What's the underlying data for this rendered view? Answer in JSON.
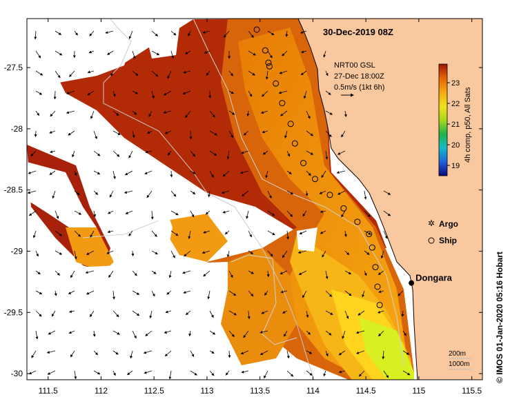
{
  "title": "30-Dec-2019 08Z",
  "current_legend": {
    "line1": "NRT00 GSL",
    "line2": "27-Dec 18:00Z",
    "line3": "0.5m/s (1kt 6h)"
  },
  "colorbar": {
    "label": "4h comp, p50, All Sats",
    "ticks": [
      "19",
      "20",
      "21",
      "22",
      "23"
    ],
    "min": 18.5,
    "max": 23.9
  },
  "x_axis": {
    "ticks": [
      "111.5",
      "112",
      "112.5",
      "113",
      "113.5",
      "114",
      "114.5",
      "115",
      "115.5"
    ],
    "range": [
      111.3,
      115.6
    ]
  },
  "y_axis": {
    "ticks": [
      "-27.5",
      "-28",
      "-28.5",
      "-29",
      "-29.5",
      "-30"
    ],
    "range": [
      -30.05,
      -27.1
    ]
  },
  "legend": {
    "argo_label": "Argo",
    "ship_label": "Ship",
    "argo_color": "#e040e0"
  },
  "place": {
    "name": "Dongara",
    "lon": 114.93,
    "lat": -29.26
  },
  "isobaths": {
    "label_200": "200m",
    "label_1000": "1000m"
  },
  "credit": "© IMOS 01-Jan-2020 05:16 Hobart",
  "colors": {
    "land": "#f9c89f",
    "sst_dark": "#a61d00",
    "sst_mid": "#dc5a00",
    "sst_warm": "#f39a0b",
    "sst_hot": "#ffd21a",
    "sst_green": "#c9f51c"
  },
  "ship_track": [
    [
      113.47,
      -27.19
    ],
    [
      113.55,
      -27.36
    ],
    [
      113.58,
      -27.46
    ],
    [
      113.59,
      -27.49
    ],
    [
      113.65,
      -27.63
    ],
    [
      113.71,
      -27.79
    ],
    [
      113.79,
      -27.96
    ],
    [
      113.83,
      -28.12
    ],
    [
      113.91,
      -28.28
    ],
    [
      114.02,
      -28.41
    ],
    [
      114.16,
      -28.54
    ],
    [
      114.29,
      -28.65
    ],
    [
      114.42,
      -28.76
    ],
    [
      114.53,
      -28.86
    ],
    [
      114.56,
      -28.97
    ],
    [
      114.59,
      -29.13
    ],
    [
      114.61,
      -29.29
    ],
    [
      114.63,
      -29.44
    ]
  ]
}
